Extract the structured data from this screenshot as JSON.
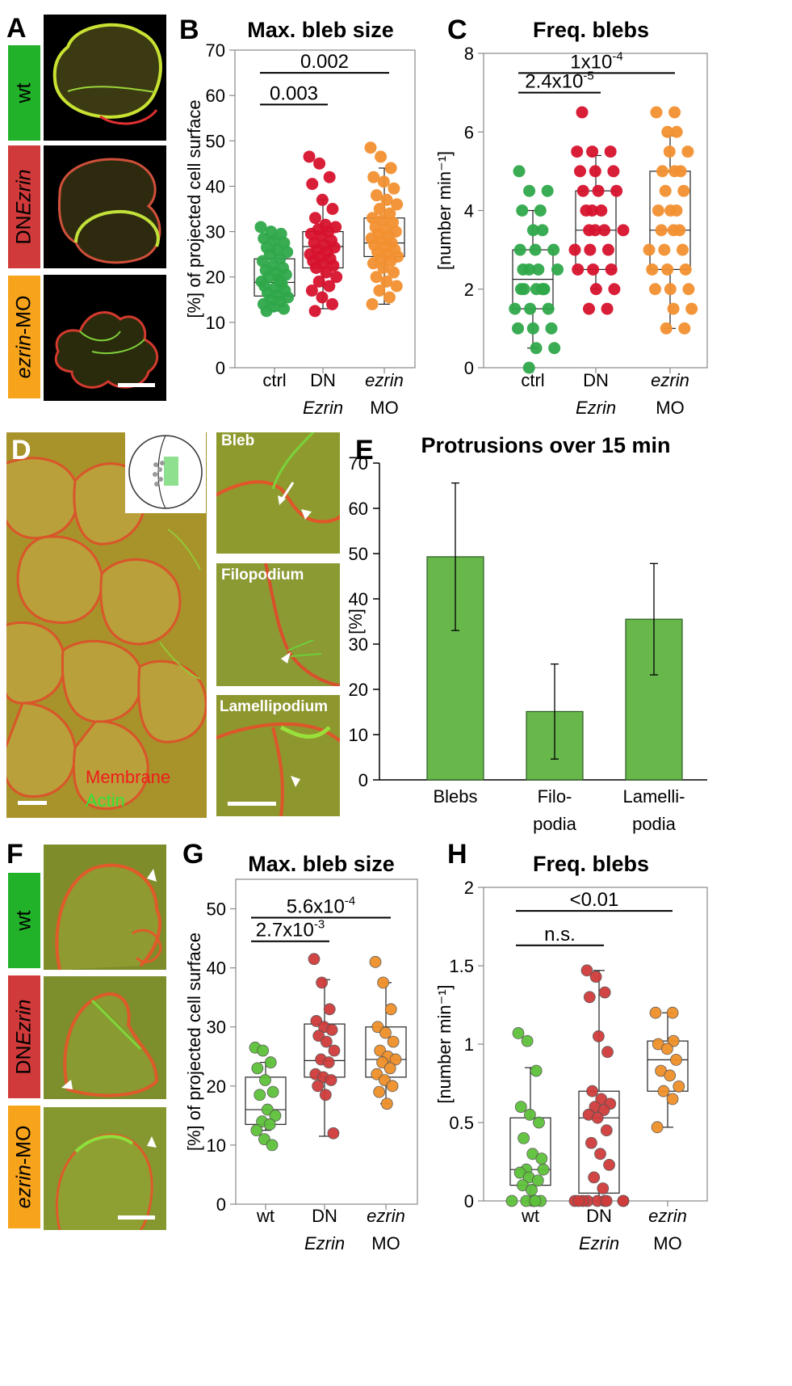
{
  "row1": {
    "panel_a": {
      "letter": "A",
      "rows": [
        {
          "label": "wt",
          "color": "#22b22a"
        },
        {
          "label_prefix": "DN",
          "label_italic": "Ezrin",
          "color": "#d03a3a"
        },
        {
          "label_italic": "ezrin",
          "label_suffix": "-MO",
          "color": "#f7a41c"
        }
      ]
    },
    "panel_b": {
      "letter": "B"
    },
    "panel_c": {
      "letter": "C"
    }
  },
  "row2": {
    "panel_d": {
      "letter": "D",
      "legend_membrane": "Membrane",
      "legend_actin": "Actin",
      "insets": [
        "Bleb",
        "Filopodium",
        "Lamellipodium"
      ]
    },
    "panel_e": {
      "letter": "E"
    }
  },
  "row3": {
    "panel_f": {
      "letter": "F",
      "rows": [
        {
          "label": "wt",
          "color": "#22b22a"
        },
        {
          "label_prefix": "DN",
          "label_italic": "Ezrin",
          "color": "#d03a3a"
        },
        {
          "label_italic": "ezrin",
          "label_suffix": "-MO",
          "color": "#f7a41c"
        }
      ]
    },
    "panel_g": {
      "letter": "G"
    },
    "panel_h": {
      "letter": "H"
    }
  },
  "colors": {
    "ctrl": "#2fa84a",
    "dn": "#d7122d",
    "mo": "#f29030",
    "bar": "#67b74b",
    "dn_light": "#cf3c3c",
    "mo_light": "#f0902a",
    "ctrl_light": "#5ec13a"
  },
  "chart_data": [
    {
      "id": "B",
      "type": "scatter",
      "title": "Max. bleb size",
      "ylabel": "[%] of projected cell surface",
      "ylim": [
        0,
        70
      ],
      "yticks": [
        0,
        10,
        20,
        30,
        40,
        50,
        60,
        70
      ],
      "categories": [
        [
          "ctrl",
          ""
        ],
        [
          "DN",
          "Ezrin"
        ],
        [
          "ezrin",
          "MO"
        ]
      ],
      "italic_second_line": [
        false,
        true,
        false
      ],
      "italic_first_line": [
        false,
        false,
        true
      ],
      "box": [
        {
          "min": 12.5,
          "q1": 15.8,
          "median": 18.8,
          "q3": 24,
          "max": 28.5
        },
        {
          "min": 13,
          "q1": 22,
          "median": 26.7,
          "q3": 30,
          "max": 37
        },
        {
          "min": 14,
          "q1": 24.5,
          "median": 27.5,
          "q3": 33,
          "max": 44
        }
      ],
      "points": [
        [
          31,
          30,
          29.5,
          28.5,
          28,
          27.5,
          26.5,
          26,
          25.5,
          25,
          24,
          23.5,
          22.5,
          22,
          21.5,
          21,
          20.5,
          20,
          19.5,
          19,
          19,
          18.5,
          18,
          17.5,
          17,
          16.5,
          16,
          15.5,
          15,
          14.5,
          14,
          13.5,
          13,
          12.5
        ],
        [
          46.5,
          45,
          42,
          40.5,
          37,
          35,
          33,
          31.5,
          31,
          30.5,
          30,
          29.5,
          29,
          28,
          27.5,
          27,
          26.5,
          26,
          25.5,
          25,
          24.5,
          24,
          23.5,
          23,
          22.5,
          22,
          21,
          20,
          19,
          18,
          17,
          15.5,
          14,
          12.5
        ],
        [
          48.5,
          46.5,
          44,
          42,
          41,
          39.5,
          38,
          37,
          36,
          35,
          34,
          33,
          32.5,
          32,
          31,
          30.5,
          30,
          29.5,
          29,
          28.5,
          28,
          27.5,
          27,
          26.5,
          26,
          25.5,
          25,
          24.5,
          24,
          23.5,
          23,
          22,
          21,
          20,
          19,
          18,
          17,
          15.5,
          14
        ]
      ],
      "comparisons": [
        {
          "from": 0,
          "to": 1,
          "y": 58,
          "label": "0.003"
        },
        {
          "from": 0,
          "to": 2,
          "y": 65,
          "label": "0.002"
        }
      ]
    },
    {
      "id": "C",
      "type": "scatter",
      "title": "Freq. blebs",
      "ylabel": "[number min⁻¹]",
      "ylim": [
        0,
        8
      ],
      "yticks": [
        0,
        2,
        4,
        6,
        8
      ],
      "categories": [
        [
          "ctrl",
          ""
        ],
        [
          "DN",
          "Ezrin"
        ],
        [
          "ezrin",
          "MO"
        ]
      ],
      "italic_second_line": [
        false,
        true,
        false
      ],
      "italic_first_line": [
        false,
        false,
        true
      ],
      "box": [
        {
          "min": 0.5,
          "q1": 1.5,
          "median": 2.25,
          "q3": 3,
          "max": 4
        },
        {
          "min": 2,
          "q1": 2.5,
          "median": 3.5,
          "q3": 4.5,
          "max": 5.4
        },
        {
          "min": 1,
          "q1": 2.5,
          "median": 3.5,
          "q3": 5,
          "max": 5.9
        }
      ],
      "points": [
        [
          5,
          4.5,
          4.5,
          4,
          4,
          3.5,
          3.5,
          3,
          3,
          3,
          2.5,
          2.5,
          2.5,
          2.5,
          2,
          2,
          2,
          2,
          2,
          2,
          1.5,
          1.5,
          1.5,
          1,
          1,
          1,
          0.5,
          0.5,
          0
        ],
        [
          6.5,
          5.5,
          5.5,
          5.5,
          5,
          5,
          5,
          4.5,
          4.5,
          4.5,
          4,
          4,
          4,
          3.5,
          3.5,
          3.5,
          3.5,
          3,
          3,
          3,
          2.5,
          2.5,
          2.5,
          2,
          2,
          1.5,
          1.5
        ],
        [
          6.5,
          6.5,
          6,
          6,
          5.5,
          5.5,
          5,
          5,
          5,
          4.5,
          4.5,
          4,
          4,
          4,
          3.5,
          3.5,
          3.5,
          3,
          3,
          3,
          2.5,
          2.5,
          2.5,
          2,
          2,
          2,
          1.5,
          1.5,
          1,
          1
        ]
      ],
      "comparisons": [
        {
          "from": 0,
          "to": 1,
          "y": 7.0,
          "label_base": "2.4x10",
          "label_exp": "-5"
        },
        {
          "from": 0,
          "to": 2,
          "y": 7.5,
          "label_base": "1x10",
          "label_exp": "-4"
        }
      ]
    },
    {
      "id": "E",
      "type": "bar",
      "title": "Protrusions over 15 min",
      "ylabel": "[%]",
      "ylim": [
        0,
        70
      ],
      "yticks": [
        0,
        10,
        20,
        30,
        40,
        50,
        60,
        70
      ],
      "categories": [
        [
          "Blebs",
          ""
        ],
        [
          "Filo-",
          "podia"
        ],
        [
          "Lamelli-",
          "podia"
        ]
      ],
      "values": [
        49.3,
        15.1,
        35.5
      ],
      "errors": [
        16.3,
        10.5,
        12.3
      ]
    },
    {
      "id": "G",
      "type": "scatter",
      "title": "Max. bleb size",
      "ylabel": "[%] of projected cell surface",
      "ylim": [
        0,
        55
      ],
      "yticks": [
        0,
        10,
        20,
        30,
        40,
        50
      ],
      "categories": [
        [
          "wt",
          ""
        ],
        [
          "DN",
          "Ezrin"
        ],
        [
          "ezrin",
          "MO"
        ]
      ],
      "italic_second_line": [
        false,
        true,
        false
      ],
      "italic_first_line": [
        false,
        false,
        true
      ],
      "box": [
        {
          "min": 12.5,
          "q1": 13.5,
          "median": 16,
          "q3": 21.5,
          "max": 24
        },
        {
          "min": 11.5,
          "q1": 21.5,
          "median": 24.3,
          "q3": 30.5,
          "max": 38
        },
        {
          "min": 17,
          "q1": 21.5,
          "median": 24.5,
          "q3": 30,
          "max": 37.5
        }
      ],
      "points": [
        [
          26.5,
          26,
          24,
          23,
          21,
          19,
          18.5,
          16,
          15,
          14,
          13.5,
          12.5,
          11,
          10
        ],
        [
          41.5,
          37.5,
          33,
          31,
          30,
          29.5,
          28.5,
          27.5,
          26,
          24.5,
          24,
          22,
          21.5,
          21,
          20,
          18.5,
          12
        ],
        [
          41,
          37.5,
          33,
          30,
          29,
          27.5,
          26,
          25,
          24.5,
          24,
          23,
          22,
          21,
          20,
          19,
          17
        ]
      ],
      "comparisons": [
        {
          "from": 0,
          "to": 1,
          "y": 44.5,
          "label_base": "2.7x10",
          "label_exp": "-3"
        },
        {
          "from": 0,
          "to": 2,
          "y": 48.5,
          "label_base": "5.6x10",
          "label_exp": "-4"
        }
      ]
    },
    {
      "id": "H",
      "type": "scatter",
      "title": "Freq. blebs",
      "ylabel": "[number min⁻¹]",
      "ylim": [
        0,
        2
      ],
      "yticks": [
        0,
        0.5,
        1,
        1.5,
        2
      ],
      "ytick_labels": [
        "0",
        "0.5",
        "1",
        "1.5",
        "2"
      ],
      "categories": [
        [
          "wt",
          ""
        ],
        [
          "DN",
          "Ezrin"
        ],
        [
          "ezrin",
          "MO"
        ]
      ],
      "italic_second_line": [
        false,
        true,
        false
      ],
      "italic_first_line": [
        false,
        false,
        true
      ],
      "box": [
        {
          "min": 0,
          "q1": 0.1,
          "median": 0.2,
          "q3": 0.53,
          "max": 0.85
        },
        {
          "min": 0,
          "q1": 0.05,
          "median": 0.53,
          "q3": 0.7,
          "max": 1.47
        },
        {
          "min": 0.47,
          "q1": 0.7,
          "median": 0.9,
          "q3": 1.02,
          "max": 1.2
        }
      ],
      "points": [
        [
          1.07,
          1.02,
          0.83,
          0.6,
          0.55,
          0.5,
          0.4,
          0.3,
          0.27,
          0.2,
          0.2,
          0.18,
          0.15,
          0.13,
          0.1,
          0.07,
          0,
          0,
          0,
          0,
          0
        ],
        [
          1.47,
          1.43,
          1.33,
          1.3,
          1.05,
          0.95,
          0.7,
          0.65,
          0.62,
          0.6,
          0.58,
          0.55,
          0.53,
          0.45,
          0.37,
          0.3,
          0.23,
          0.15,
          0.08,
          0,
          0,
          0,
          0,
          0,
          0,
          0,
          0,
          0
        ],
        [
          1.2,
          1.2,
          1.02,
          1.0,
          0.97,
          0.9,
          0.83,
          0.8,
          0.73,
          0.7,
          0.65,
          0.47
        ]
      ],
      "comparisons": [
        {
          "from": 0,
          "to": 1,
          "y": 1.63,
          "label": "n.s."
        },
        {
          "from": 0,
          "to": 2,
          "y": 1.85,
          "label": "<0.01"
        }
      ]
    }
  ]
}
